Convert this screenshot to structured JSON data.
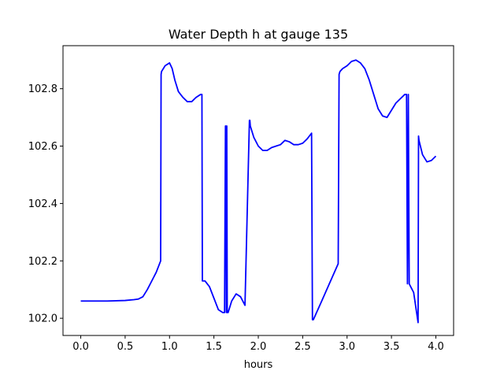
{
  "chart_data": {
    "type": "line",
    "title": "Water Depth h at gauge 135",
    "xlabel": "hours",
    "ylabel": "",
    "xlim": [
      -0.2,
      4.2
    ],
    "ylim": [
      101.94,
      102.95
    ],
    "xticks": [
      0.0,
      0.5,
      1.0,
      1.5,
      2.0,
      2.5,
      3.0,
      3.5,
      4.0
    ],
    "xtick_labels": [
      "0.0",
      "0.5",
      "1.0",
      "1.5",
      "2.0",
      "2.5",
      "3.0",
      "3.5",
      "4.0"
    ],
    "yticks": [
      102.0,
      102.2,
      102.4,
      102.6,
      102.8
    ],
    "ytick_labels": [
      "102.0",
      "102.2",
      "102.4",
      "102.6",
      "102.8"
    ],
    "grid": false,
    "legend": "none",
    "series": [
      {
        "color": "#0000ff",
        "x": [
          0.0,
          0.3,
          0.5,
          0.6,
          0.65,
          0.7,
          0.75,
          0.8,
          0.85,
          0.9,
          0.905,
          0.91,
          0.95,
          1.0,
          1.03,
          1.06,
          1.1,
          1.15,
          1.2,
          1.25,
          1.3,
          1.35,
          1.365,
          1.37,
          1.4,
          1.45,
          1.5,
          1.55,
          1.6,
          1.62,
          1.63,
          1.635,
          1.64,
          1.645,
          1.65,
          1.66,
          1.7,
          1.75,
          1.8,
          1.85,
          1.9,
          1.905,
          1.91,
          1.95,
          2.0,
          2.05,
          2.1,
          2.15,
          2.2,
          2.25,
          2.3,
          2.35,
          2.4,
          2.45,
          2.5,
          2.55,
          2.6,
          2.61,
          2.62,
          2.7,
          2.8,
          2.9,
          2.91,
          2.92,
          2.95,
          3.0,
          3.05,
          3.1,
          3.15,
          3.2,
          3.25,
          3.3,
          3.35,
          3.4,
          3.45,
          3.5,
          3.55,
          3.6,
          3.65,
          3.67,
          3.68,
          3.69,
          3.7,
          3.75,
          3.8,
          3.805,
          3.81,
          3.85,
          3.9,
          3.95,
          4.0
        ],
        "y": [
          102.06,
          102.06,
          102.062,
          102.065,
          102.067,
          102.075,
          102.1,
          102.13,
          102.16,
          102.2,
          102.85,
          102.86,
          102.88,
          102.89,
          102.87,
          102.83,
          102.79,
          102.77,
          102.755,
          102.755,
          102.77,
          102.78,
          102.78,
          102.13,
          102.13,
          102.11,
          102.07,
          102.03,
          102.02,
          102.02,
          102.67,
          102.67,
          102.02,
          102.67,
          102.02,
          102.02,
          102.06,
          102.085,
          102.075,
          102.045,
          102.69,
          102.69,
          102.67,
          102.63,
          102.6,
          102.585,
          102.585,
          102.595,
          102.6,
          102.605,
          102.62,
          102.615,
          102.605,
          102.605,
          102.61,
          102.625,
          102.645,
          101.995,
          101.995,
          102.05,
          102.12,
          102.19,
          102.85,
          102.86,
          102.87,
          102.88,
          102.895,
          102.9,
          102.89,
          102.87,
          102.83,
          102.78,
          102.73,
          102.705,
          102.7,
          102.725,
          102.75,
          102.765,
          102.78,
          102.78,
          102.12,
          102.78,
          102.12,
          102.09,
          101.985,
          102.635,
          102.62,
          102.57,
          102.545,
          102.55,
          102.565
        ]
      }
    ]
  }
}
